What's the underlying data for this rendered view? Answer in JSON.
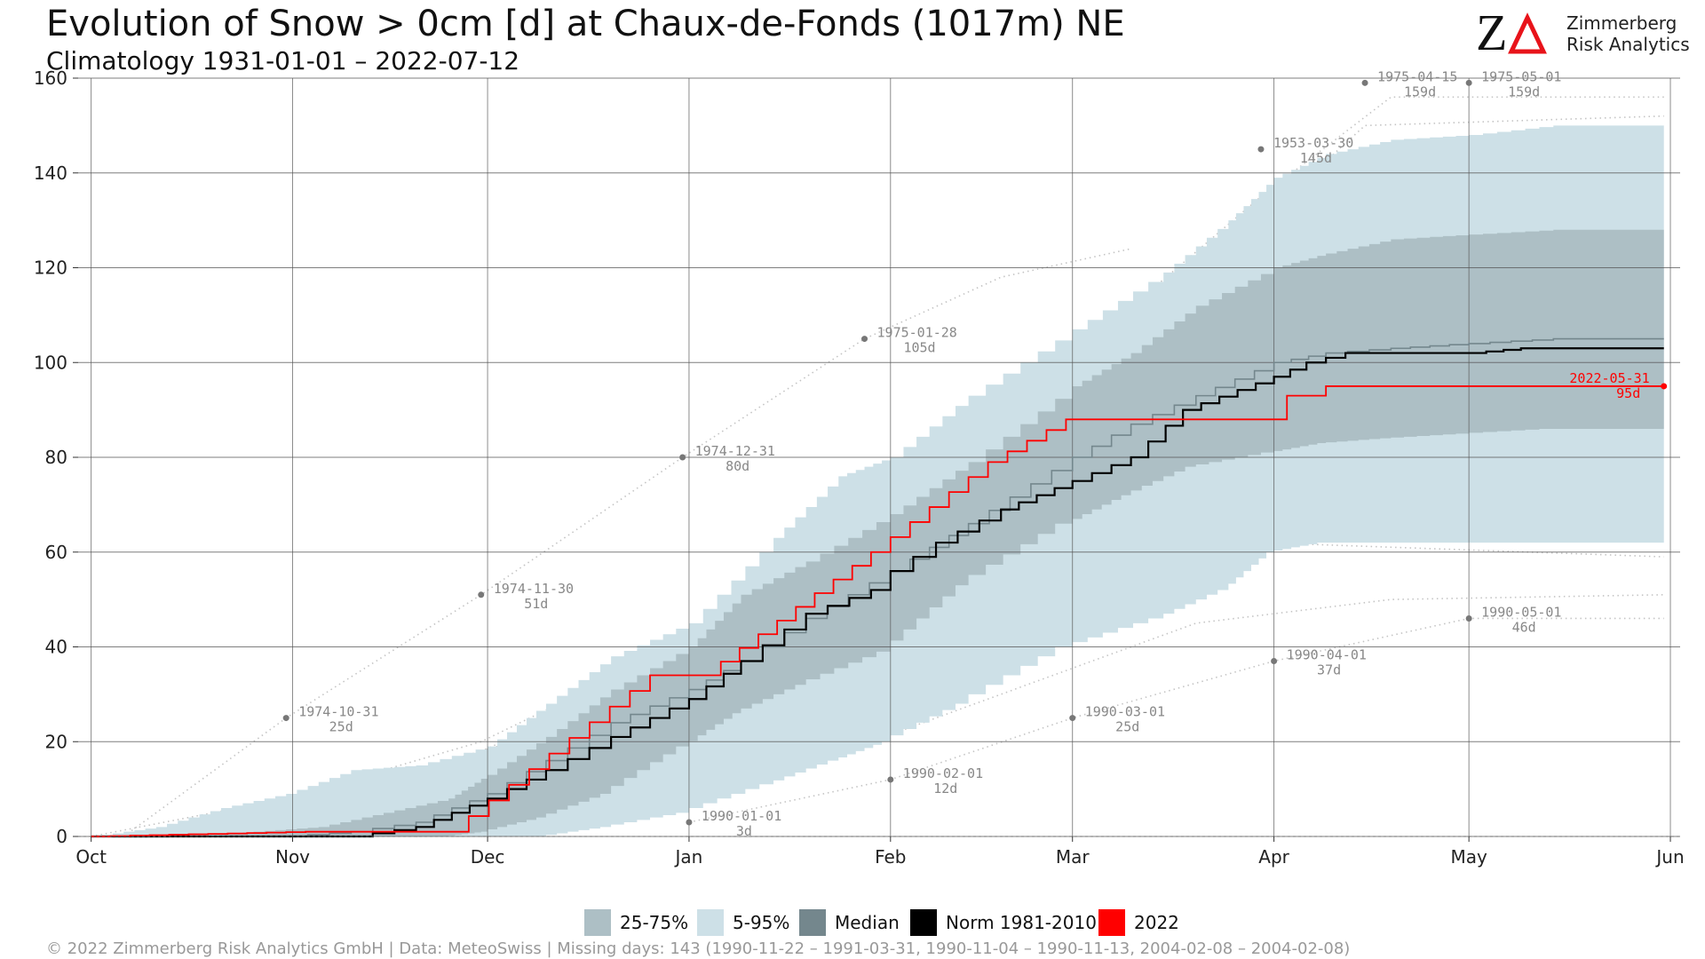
{
  "header": {
    "title": "Evolution of Snow > 0cm [d] at Chaux-de-Fonds (1017m) NE",
    "subtitle": "Climatology 1931-01-01 – 2022-07-12"
  },
  "brand": {
    "logo_letters": "ZΔ",
    "line1": "Zimmerberg",
    "line2": "Risk Analytics",
    "accent": "#e8131a"
  },
  "legend": [
    {
      "label": "25-75%",
      "color": "#adbfc5"
    },
    {
      "label": "5-95%",
      "color": "#cde0e7"
    },
    {
      "label": "Median",
      "color": "#74878d"
    },
    {
      "label": "Norm 1981-2010",
      "color": "#000000"
    },
    {
      "label": "2022",
      "color": "#ff0000"
    }
  ],
  "footer": "©  2022 Zimmerberg Risk Analytics GmbH | Data: MeteoSwiss | Missing days: 143 (1990-11-22 – 1991-03-31, 1990-11-04 – 1990-11-13, 2004-02-08 – 2004-02-08)",
  "chart_data": {
    "type": "area",
    "title": "Evolution of Snow > 0cm [d] at Chaux-de-Fonds (1017m) NE",
    "subtitle": "Climatology 1931-01-01 – 2022-07-12",
    "xlabel": "",
    "ylabel": "",
    "x_unit": "day of season from Oct 1",
    "xlim": [
      0,
      243
    ],
    "ylim": [
      0,
      160
    ],
    "grid": true,
    "legend_position": "bottom",
    "x_ticks": [
      {
        "label": "Oct",
        "day": 0
      },
      {
        "label": "Nov",
        "day": 31
      },
      {
        "label": "Dec",
        "day": 61
      },
      {
        "label": "Jan",
        "day": 92
      },
      {
        "label": "Feb",
        "day": 123
      },
      {
        "label": "Mar",
        "day": 151
      },
      {
        "label": "Apr",
        "day": 182
      },
      {
        "label": "May",
        "day": 212
      },
      {
        "label": "Jun",
        "day": 243
      }
    ],
    "y_ticks": [
      0,
      20,
      40,
      60,
      80,
      100,
      120,
      140,
      160
    ],
    "band_5_95": {
      "x": [
        0,
        10,
        20,
        30,
        40,
        50,
        61,
        70,
        80,
        92,
        105,
        115,
        123,
        135,
        151,
        165,
        175,
        182,
        190,
        200,
        212,
        225,
        242
      ],
      "low": [
        0,
        0,
        0,
        0,
        0,
        0,
        0,
        0,
        2,
        5,
        11,
        16,
        20,
        28,
        40,
        46,
        52,
        60,
        62,
        62,
        62,
        62,
        62
      ],
      "high": [
        0,
        2,
        6,
        9,
        14,
        15,
        19,
        28,
        38,
        45,
        63,
        76,
        80,
        93,
        107,
        119,
        130,
        139,
        144,
        147,
        148,
        150,
        150
      ]
    },
    "band_25_75": {
      "x": [
        0,
        15,
        25,
        35,
        45,
        55,
        61,
        70,
        80,
        92,
        100,
        110,
        123,
        135,
        151,
        160,
        170,
        182,
        190,
        200,
        212,
        225,
        242
      ],
      "low": [
        0,
        0,
        0,
        0,
        0,
        0,
        1,
        4,
        9,
        19,
        26,
        32,
        39,
        53,
        66,
        72,
        78,
        81,
        83,
        84,
        85,
        86,
        86
      ],
      "high": [
        0,
        0,
        1,
        2,
        5,
        8,
        13,
        21,
        31,
        40,
        51,
        58,
        68,
        79,
        95,
        102,
        112,
        120,
        123,
        126,
        127,
        128,
        128
      ]
    },
    "series": [
      {
        "name": "Median",
        "color": "#74878d",
        "x": [
          0,
          30,
          40,
          50,
          61,
          70,
          80,
          92,
          100,
          110,
          123,
          135,
          151,
          160,
          170,
          182,
          190,
          200,
          212,
          225,
          242
        ],
        "y": [
          0,
          0,
          1,
          3,
          9,
          16,
          24,
          31,
          37,
          46,
          56,
          66,
          80,
          87,
          93,
          100,
          102,
          103,
          104,
          105,
          105
        ]
      },
      {
        "name": "Norm 1981-2010",
        "color": "#000000",
        "x": [
          0,
          40,
          50,
          61,
          70,
          80,
          92,
          100,
          110,
          120,
          123,
          130,
          140,
          151,
          160,
          168,
          182,
          187,
          193,
          212,
          220,
          242
        ],
        "y": [
          0,
          0,
          2,
          8,
          14,
          21,
          29,
          37,
          47,
          52,
          56,
          62,
          69,
          75,
          80,
          90,
          97,
          100,
          102,
          102,
          103,
          103
        ]
      },
      {
        "name": "2022",
        "color": "#ff0000",
        "x": [
          0,
          33,
          55,
          86,
          94,
          120,
          138,
          150,
          160,
          181,
          184,
          188,
          190,
          242
        ],
        "y": [
          0,
          1,
          1,
          34,
          34,
          60,
          79,
          88,
          88,
          88,
          93,
          93,
          95,
          95
        ]
      }
    ],
    "annotations": [
      {
        "date": "1974-10-31",
        "value": "25d",
        "x": 30,
        "y": 25
      },
      {
        "date": "1974-11-30",
        "value": "51d",
        "x": 60,
        "y": 51
      },
      {
        "date": "1974-12-31",
        "value": "80d",
        "x": 91,
        "y": 80
      },
      {
        "date": "1975-01-28",
        "value": "105d",
        "x": 119,
        "y": 105
      },
      {
        "date": "1953-03-30",
        "value": "145d",
        "x": 180,
        "y": 145
      },
      {
        "date": "1975-04-15",
        "value": "159d",
        "x": 196,
        "y": 159
      },
      {
        "date": "1975-05-01",
        "value": "159d",
        "x": 212,
        "y": 159
      },
      {
        "date": "1990-01-01",
        "value": "3d",
        "x": 92,
        "y": 3
      },
      {
        "date": "1990-02-01",
        "value": "12d",
        "x": 123,
        "y": 12
      },
      {
        "date": "1990-03-01",
        "value": "25d",
        "x": 151,
        "y": 25
      },
      {
        "date": "1990-04-01",
        "value": "37d",
        "x": 182,
        "y": 37
      },
      {
        "date": "1990-05-01",
        "value": "46d",
        "x": 212,
        "y": 46
      },
      {
        "date": "2022-05-31",
        "value": "95d",
        "x": 242,
        "y": 95,
        "highlight": true
      }
    ]
  }
}
